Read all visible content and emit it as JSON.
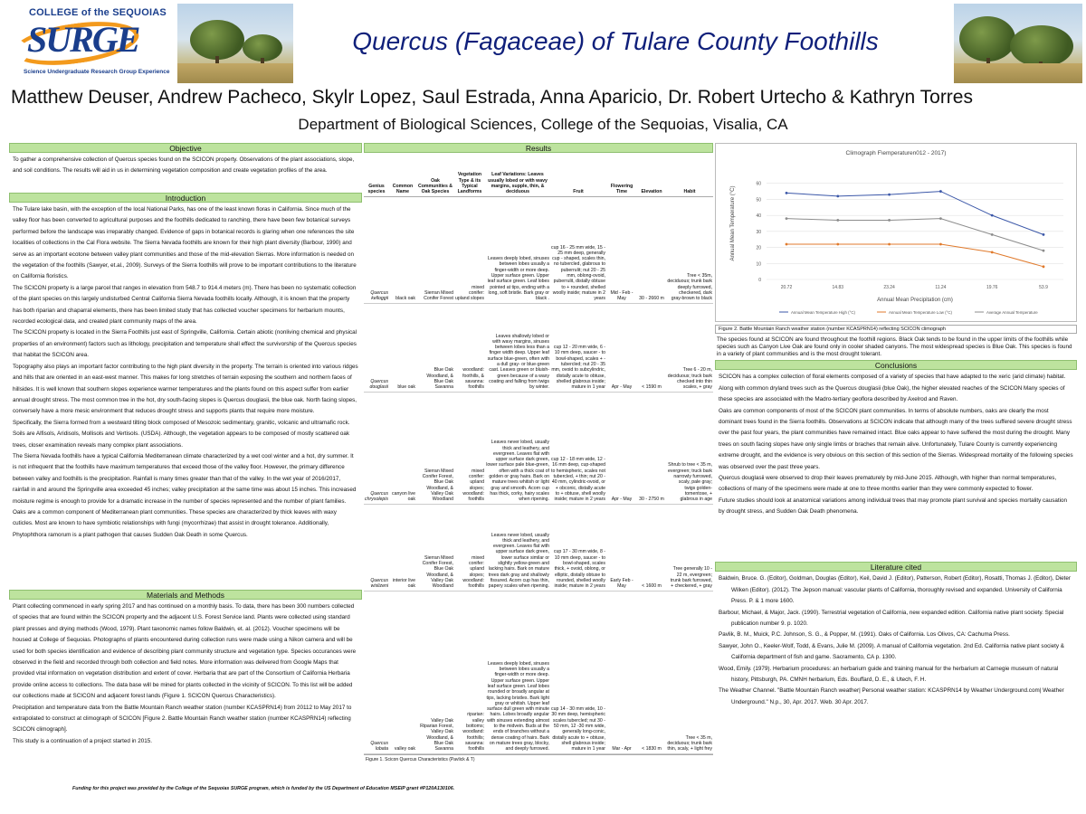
{
  "header": {
    "logo_college": "COLLEGE of the SEQUOIAS",
    "logo_surge": "SURGE",
    "logo_tag": "Science Undergraduate Research Group Experience",
    "title": "Quercus (Fagaceae) of Tulare County Foothills",
    "authors": "Matthew Deuser, Andrew Pacheco, Skylr Lopez, Saul Estrada, Anna Aparicio, Dr. Robert Urtecho & Kathryn Torres",
    "department": "Department of Biological Sciences, College of the Sequoias, Visalia, CA"
  },
  "objective": {
    "heading": "Objective",
    "text": "To gather a comprehensive collection of Quercus species found on the SCICON property. Observations of the plant associations, slope, and soil conditions. The results will aid in us in determining vegetation composition and create vegetation profiles of the area."
  },
  "introduction": {
    "heading": "Introduction",
    "paragraphs": [
      "The Tulare lake basin, with the exception of the local National Parks, has one of the least known floras in California. Since much of the valley floor has been converted to agricultural purposes and the foothills dedicated to ranching, there have been few botanical surveys performed before the landscape was irreparably changed. Evidence of gaps in botanical records is glaring when one references the site localities of collections in the Cal Flora website. The Sierra Nevada foothills are known for their high plant diversity (Barbour, 1990) and serve as an important ecotone between valley plant communities and those of the mid-elevation Sierras. More information is needed on the vegetation of the foothills (Sawyer, et.al., 2009). Surveys of the Sierra foothills will prove to be important contributions to the literature on California floristics.",
      "The SCICON property is a large parcel that ranges in elevation from 548.7 to 914.4 meters (m). There has been no systematic collection of the plant species on this largely undisturbed Central California Sierra Nevada foothills locally. Although, it is known that the property has both riparian and chaparral elements, there has been limited study that has collected voucher specimens for herbarium mounts, recorded ecological data, and created plant community maps of the area.",
      "The SCICON property is located in the Sierra Foothills just east of Springville, California. Certain abiotic (nonliving chemical and physical properties of an environment) factors such as lithology, precipitation and temperature shall effect the survivorship of the Quercus species that habitat the SCICON area.",
      "Topography also plays an important factor contributing to the high plant diversity in the property. The terrain is oriented into various ridges and hills that are oriented in an east-west manner. This makes for long stretches of terrain exposing the southern and northern faces of hillsides. It is well known that southern slopes experience warmer temperatures and the plants found on this aspect suffer from earlier annual drought stress. The most common tree in the hot, dry south-facing slopes is Quercus douglasii, the blue oak. North facing slopes, conversely have a more mesic environment that reduces drought stress and supports plants that require more moisture.",
      "Specifically, the Sierra formed from a westward tilting block composed of Mesozoic sedimentary, granitic, volcanic and ultramafic rock. Soils are Alfisols, Aridisols, Mollisols and Vertisols. (USDA). Although, the vegetation appears to be composed of mostly scattered oak trees, closer examination reveals many complex plant associations.",
      "The Sierra Nevada foothills have a typical California Mediterranean climate characterized by a wet cool winter and a hot, dry summer. It is not infrequent that the foothills have maximum temperatures that exceed those of the valley floor. However, the primary difference between valley and foothills is the precipitation. Rainfall is many times greater than that of the valley. In the wet year of 2016/2017, rainfall in and around the Springville area exceeded 45 inches; valley precipitation at the same time was about 15 inches. This increased moisture regime is enough to provide for a dramatic increase in the number of species represented and the number of plant families.",
      "Oaks are a common component of Mediterranean plant communities. These species are characterized by thick leaves with waxy cuticles. Most are known to have symbiotic relationships with fungi (mycorrhizae) that assist in drought tolerance. Additionally, Phytophthora ramorum is a plant pathogen that causes Sudden Oak Death in some Quercus."
    ]
  },
  "methods": {
    "heading": "Materials and Methods",
    "paragraphs": [
      "Plant collecting commenced in early spring 2017 and has continued on a monthly basis. To data, there has been 300 numbers collected of species that are found within the SCICON property and the adjacent U.S. Forest Service land. Plants were collected using standard plant presses and drying methods (Wood, 1979). Plant taxonomic names follow Baldwin, et. al. (2012). Voucher specimens will be housed at College of Sequoias. Photographs of plants encountered during collection runs were made using a Nikon camera and will be used for both species identification and evidence of describing plant community structure and vegetation type. Species occurances were observed in the field and recorded through both collection and field notes. More information was delivered from Google Maps that provided vital information on vegetation distribution and extent of cover. Herbaria that are part of the Consortium of California Herbaria provide online access to collections. The data base will be mined for plants collected in the vicinity of SCICON. To this list will be added our collections made at SCICON and adjacent forest lands (Figure 1. SCICON Quercus Characteristics).",
      "Precipitation and temperature data from the Battle Mountain Ranch weather station (number KCASPRN14) from 20112 to May 2017 to extrapolated to construct at climograph of SCICON [Figure 2. Battle Mountain Ranch weather station (number KCASPRN14) reflecting SCICON climograph].",
      "This study is a continuation of a project started in 2015."
    ]
  },
  "results": {
    "heading": "Results",
    "columns": [
      "Genius species",
      "Common Name",
      "Oak Communities & Oak Species",
      "Vegetation Type & its Typical Landforms",
      "Leaf Variations: Leaves usually lobed or with wavy margins, supple, thin, & deciduous",
      "Fruit",
      "Flowering Time",
      "Elevation",
      "Habit"
    ],
    "rows": [
      [
        "Quercus kelloggii",
        "black oak",
        "Sierran Mixed Conifer Forest",
        "mixed conifer: upland slopes",
        "Leaves deeply lobed, sinuses between lobes usually a finger-width or more deep. Upper surface green. Upper leaf surface green. Leaf lobes pointed at tips, ending with a long, soft bristle. Bark gray or black .",
        "cup 16 - 25 mm wide, 15 - 25 mm deep, generally cup - shaped, scales thin, no tubercled, glabrous to puberrulit; nut 20 - 25 mm, oblong-ovoid, puberrulit, distally obtuse to + rounded, shelled woolly inside; mature in 2 years",
        "Mid - Feb - May",
        "30 - 2660 m",
        "Tree < 35m, deciduous; trunk bark deeply furrowed, checkered, dark gray-brown to black"
      ],
      [
        "Quercus douglasii",
        "blue oak",
        "Blue Oak Woodland, & Blue Oak Savanna",
        "woodland: foothills, & savanna: foothills",
        "Leaves shallowly lobed or with wavy margins, sinuses between lobes less than a finger width deep. Upper leaf surface blue-green, often with a dull gray- or blue-green cast. Leaves green or bluish-green because of a waxy coating and falling from twigs by winter.",
        "cup 12 - 20 mm wide, 6 - 10 mm deep, saucer - to bowl-shaped, scales + - tubercled; nut 20 - 35 mm, ovoid to subcylindric, distally acute to obtuse, shelled glabrous inside; mature in 1 year",
        "Apr - May",
        "< 1590 m",
        "Tree 6 - 20 m, deciduous; truck bark checked into thin scales, + gray"
      ],
      [
        "Quercus chrysolepis",
        "canyon live oak",
        "Sierran Mixed Conifer Forest, Blue Oak Woodland, & Valley Oak Woodland",
        "mixed conifer: upland slopes; woodland: foothills",
        "Leaves never lobed, usually thick and leathery, and evergreen. Leaves flat with upper surface dark green, lower surface pale blue-green, often with a thick coat of golden or gray hairs. Bark on mature trees whitish or light gray and smooth. Acorn cup has thick, corky, hairy scales when ripening.",
        "cup 12 - 18 mm wide, 12 - 16 mm deep, cup-shaped to hemispheric, scales not tubercled, + thin; nut 20 - 40 mm, cylindric-ovoid, or + obconic, distally acute to + obtuse, shell woolly inside; mature in 2 years",
        "Apr - May",
        "30 - 2750 m",
        "Shrub to tree < 35 m, evergreen; truck bark narrowly furrowed, scaly, pale gray; twigs golden-tomentose, + glabrous in age"
      ],
      [
        "Quercus wislizeni",
        "interior live oak",
        "Sierran Mixed Conifer Forest, Blue Oak Woodland, & Valley Oak Woodland",
        "mixed conifer: upland slopes; woodland: foothills",
        "Leaves never lobed, usually thick and leathery, and evergreen. Leaves flat with upper surface dark green, lower surface similar or slightly yellow-green and lacking hairs. Bark on mature trees dark gray and shallowly fissured. Acorn cup has thin, papery scales when ripening.",
        "cup 17 - 30 mm wide, 8 - 10 mm deep, saucer - to bowl-shaped, scales thick, + ovoid, oblong, or elliptic, distally obtuse to rounded, shelled woolly inside; mature in 2 years",
        "Early Feb - May",
        "< 1600 m",
        "Tree generally 10 - 22 m, evergreen; trunk bark furrowed, + checkered, + gray"
      ],
      [
        "Quercus lobata",
        "valley oak",
        "Valley Oak Riparian Forest, Valley Oak Woodland, & Blue Oak Savanna",
        "riparian: valley bottoms; woodland: foothills; savanna: foothills",
        "Leaves deeply lobed, sinuses between lobes usually a finger-width or more deep. Upper surface green. Upper leaf surface green. Leaf lobes rounded or broadly angular at tips, lacking bristles. Bark light gray or whitish. Upper leaf surface dull green with minute hairs. Lobes broadly angular with sinuses extending almost to the midvein. Buds at the ends of branches without a dense coating of hairs. Bark on mature trees gray, blocky, and deeply furrowed.",
        "cup 14 - 30 mm wide, 10 - 30 mm deep, hemispheric scales tubercled; nut 30 - 50 mm, 12 -30 mm wide, generally long-conic, distally acute to + obtuse, shell glabrous inside; mature in 1 year",
        "Mar - Apr",
        "< 1830 m",
        "Tree < 35 m, deciduous; trunk bark thin, scaly, + light frey"
      ]
    ],
    "caption": "Figure 1. Scicon Quercus Characteristics (Pavlick & T)"
  },
  "chart_data": {
    "type": "line",
    "title": "Climograph F\\emperaturen012 - 2017)",
    "xlabel": "Annual Mean Precipitation (cm)",
    "ylabel": "Annual Mean Temperature (°C)",
    "categories": [
      "20.72",
      "14.83",
      "23.24",
      "11.24",
      "19.76",
      "53.9"
    ],
    "ylim": [
      0,
      70
    ],
    "yticks": [
      0,
      10,
      20,
      30,
      40,
      50,
      60
    ],
    "grid": true,
    "legend": "bottom",
    "series": [
      {
        "name": "Annual Mean Temperature High (°C)",
        "values": [
          54,
          52,
          53,
          55,
          40,
          28
        ],
        "color": "#3b57a8"
      },
      {
        "name": "Annual Mean Temperature Low (°C)",
        "values": [
          22,
          22,
          22,
          22,
          17,
          8
        ],
        "color": "#e07a2c"
      },
      {
        "name": "Average Annual Temperature",
        "values": [
          38,
          37,
          37,
          38,
          28,
          18
        ],
        "color": "#8c8c8c"
      }
    ]
  },
  "figure2": {
    "caption": "Figure 2. Battle Mountain Ranch weather station (number KCASPRN14) reflecting SCICON climograph",
    "text": "The species found at SCICON are found throughout the foothill regions. Black Oak tends to be found in the upper limits of the foothills while species such as Canyon Live Oak are found only in cooler shaded canyons. The most widespread species is Blue Oak. This species is found in a variety of plant communities and is the most drought tolerant."
  },
  "conclusions": {
    "heading": "Conclusions",
    "paragraphs": [
      "SCICON has a complex collection of floral elements composed of a variety of species that have adapted to the xeric (arid climate) habitat. Along with common dryland trees such as the Quercus douglasii (blue Oak), the higher elevated reaches of the SCICON Many species of these species are associated with the Madro-tertiary geoflora described by Axelrod and Raven.",
      "Oaks are common components of most of the SCICON plant communities. In terms of absolute numbers, oaks are clearly the most dominant trees found in the Sierra foothills. Observations at SCICON indicate that although many of the trees suffered severe drought stress over the past four years, the plant communities have remained intact. Blue oaks appear to have suffered the most during the drought. Many trees on south facing slopes have only single limbs or braches that remain alive. Unfortunately, Tulare County is currently experiencing extreme drought, and the evidence is very obvious on this section of this section of the Sierras. Widespread mortality of the following species was observed over the past three years.",
      "Quercus douglasii were observed to drop their leaves prematurely by mid-June 2015. Although, with higher than normal temperatures, collections of many of the specimens were made at one to three months earlier than they were commonly expected to flower.",
      "Future studies should look at anatomical variations among individual trees that may promote plant survival and species mortality causation by drought stress, and Sudden Oak Death phenomena."
    ]
  },
  "literature": {
    "heading": "Literature cited",
    "entries": [
      "Baldwin, Bruce. G. (Editor), Goldman, Douglas (Editor), Keil, David J. (Editor), Patterson, Robert (Editor), Rosatti, Thomas J. (Editor), Dieter Wilken (Editor). (2012). The Jepson manual: vascular plants of California, thoroughly revised and expanded. University of California Press. P. & 1 more 1600.",
      "Barbour, Michael, & Major, Jack. (1990). Terrestrial vegetation of California, new expanded edition. California native plant society. Special publication number 9. p. 1020.",
      "Pavlik, B. M., Muick, P.C. Johnson, S. G., & Popper, M. (1991). Oaks of California. Los Olivos, CA: Cachuma Press.",
      "Sawyer, John O., Keeler-Wolf, Todd, & Evans, Julie M. (2009). A manual of California vegetation. 2nd Ed. California native plant society & California department of fish and game. Sacramento, CA p. 1300.",
      "Wood, Emily. (1979). Herbarium procedures: an herbarium guide and training manual for the herbarium at Carnegie museum of natural history, Pittsburgh, PA. CMNH herbarium, Eds. Bouffard, D. E., & Utech, F. H.",
      "The Weather Channel. \"Battle Mountain Ranch weather| Personal weather station: KCASPRN14 by Weather Underground.com| Weather Underground.\" N.p., 30, Apr. 2017. Web. 30 Apr. 2017."
    ]
  },
  "footer": {
    "text": "Funding for this project was provided by the College of the Sequoias SURGE program, which is funded by the US Department of Education MSEIP grant #P120A130106."
  }
}
